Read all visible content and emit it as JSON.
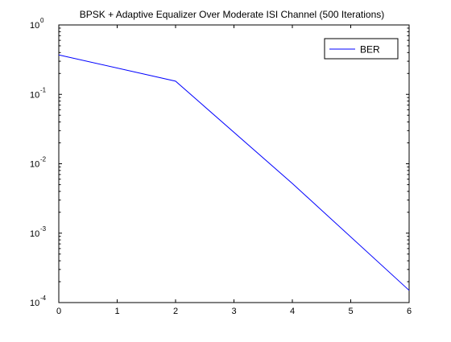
{
  "chart_data": {
    "type": "line",
    "title": "BPSK + Adaptive Equalizer Over Moderate ISI Channel (500 Iterations)",
    "xlabel": "",
    "ylabel": "",
    "xlim": [
      0,
      6
    ],
    "ylim": [
      0.0001,
      1
    ],
    "yscale": "log",
    "grid": false,
    "legend_position": "top-right",
    "x_ticks": [
      "0",
      "1",
      "2",
      "3",
      "4",
      "5",
      "6"
    ],
    "y_ticks": [
      {
        "base": "10",
        "exp": "0",
        "value": 1
      },
      {
        "base": "10",
        "exp": "-1",
        "value": 0.1
      },
      {
        "base": "10",
        "exp": "-2",
        "value": 0.01
      },
      {
        "base": "10",
        "exp": "-3",
        "value": 0.001
      },
      {
        "base": "10",
        "exp": "-4",
        "value": 0.0001
      }
    ],
    "series": [
      {
        "name": "BER",
        "color": "#0000ff",
        "x": [
          0,
          2,
          4,
          6
        ],
        "y": [
          0.37,
          0.155,
          0.0052,
          0.00015
        ]
      }
    ]
  }
}
